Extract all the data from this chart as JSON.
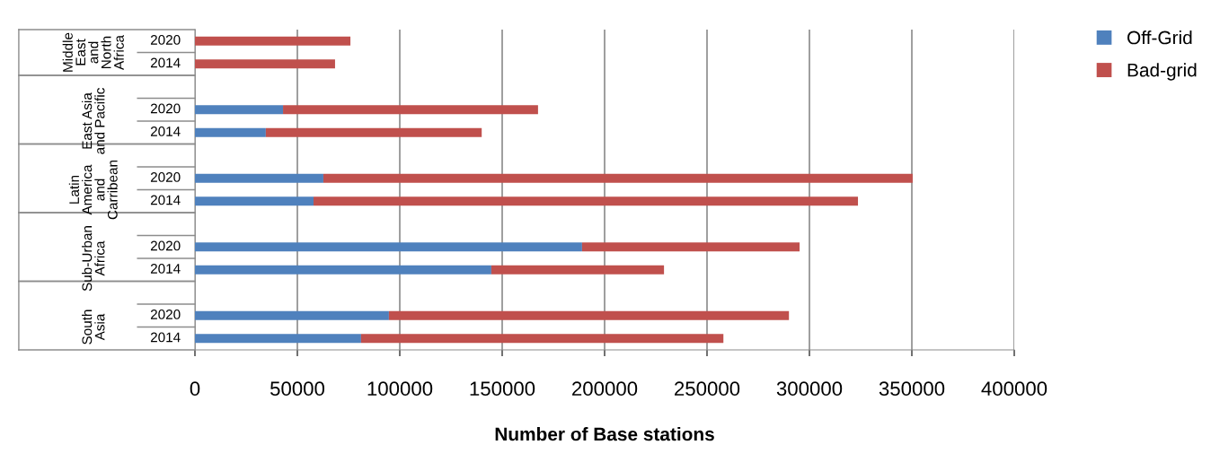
{
  "chart_data": {
    "type": "bar",
    "orientation": "horizontal",
    "stacked": true,
    "xlabel": "Number of Base stations",
    "categories": [
      "2020",
      "2014",
      null,
      "2020",
      "2014",
      null,
      "2020",
      "2014",
      null,
      "2020",
      "2014",
      null,
      "2020",
      "2014"
    ],
    "series": [
      {
        "name": "Off-Grid",
        "color": "#4f81bd",
        "values": [
          0,
          0,
          null,
          43000,
          34600,
          null,
          62700,
          57900,
          null,
          189000,
          144700,
          null,
          94700,
          81100
        ]
      },
      {
        "name": "Bad-grid",
        "color": "#c0504d",
        "values": [
          75900,
          68400,
          null,
          124500,
          105400,
          null,
          287700,
          265800,
          null,
          106200,
          84300,
          null,
          195300,
          176900
        ]
      }
    ],
    "annotations": [
      "Middle\nEast\nand\nNorth\nAfrica",
      "East Asia\nand Pacific",
      "Latin\nAmerica\nand\nCarribean",
      "Sub-Urban\nAfrica",
      "South\nAsia"
    ],
    "xlim": [
      0,
      400000
    ],
    "xticks": [
      0,
      50000,
      100000,
      150000,
      200000,
      250000,
      300000,
      350000,
      400000
    ],
    "grid": "x",
    "legend": "top right"
  }
}
